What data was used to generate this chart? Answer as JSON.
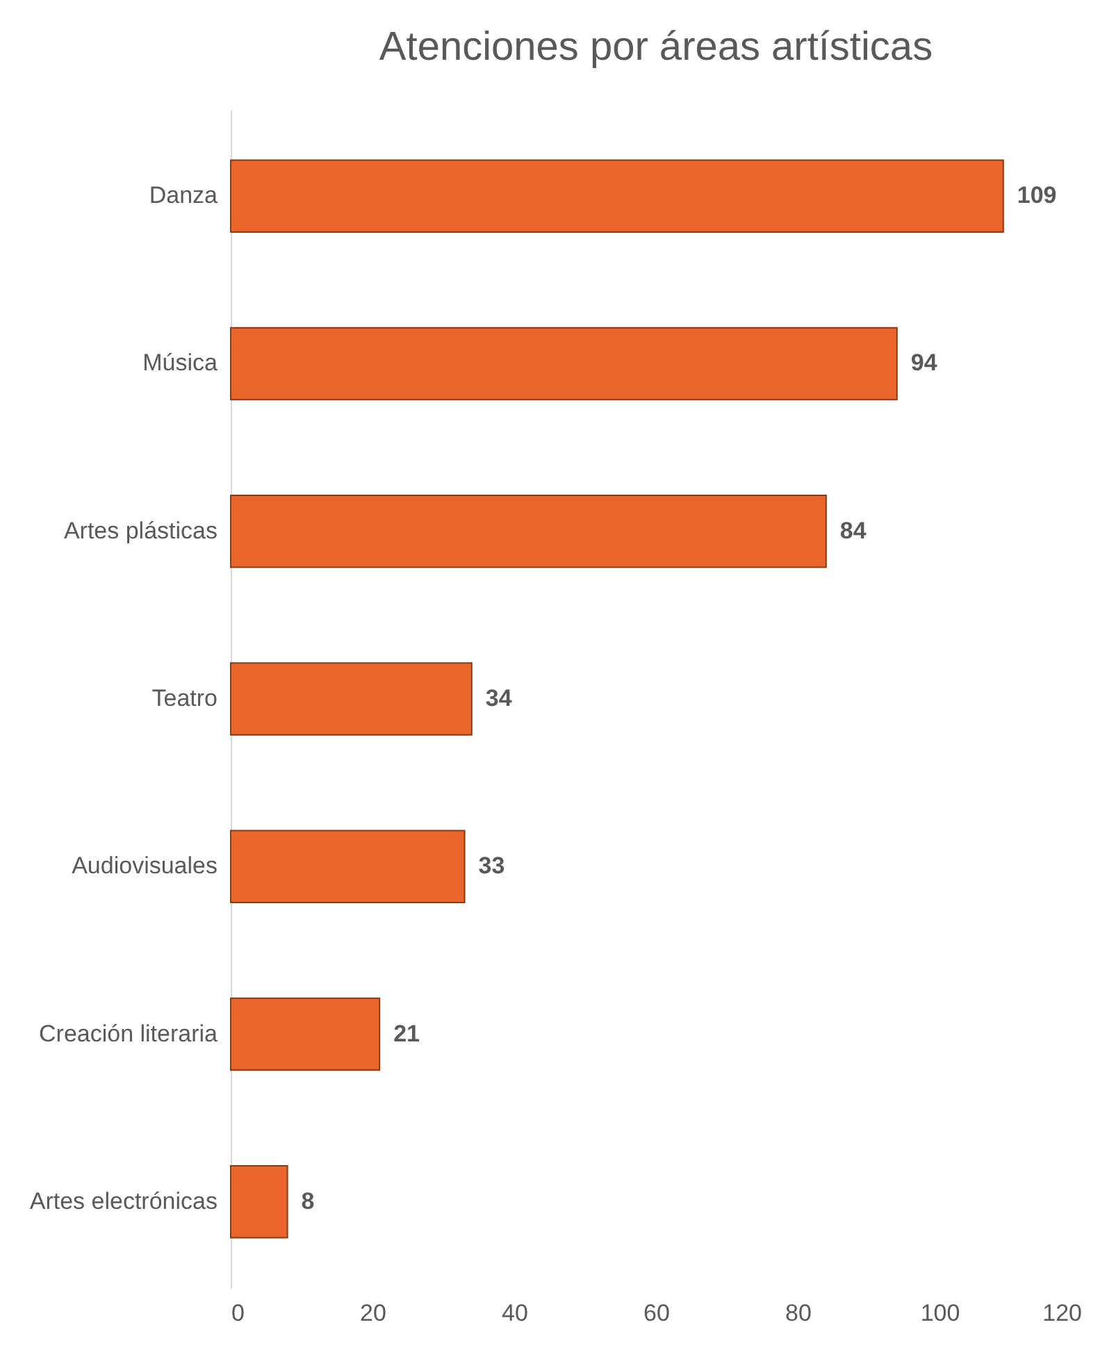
{
  "chart_data": {
    "type": "bar",
    "orientation": "horizontal",
    "title": "Atenciones por áreas artísticas",
    "categories": [
      "Danza",
      "Música",
      "Artes plásticas",
      "Teatro",
      "Audiovisuales",
      "Creación literaria",
      "Artes electrónicas"
    ],
    "values": [
      109,
      94,
      84,
      34,
      33,
      21,
      8
    ],
    "color": "#e8652c",
    "xlim": [
      0,
      120
    ],
    "xticks": [
      0,
      20,
      40,
      60,
      80,
      100,
      120
    ],
    "grid": false,
    "data_labels": true
  }
}
